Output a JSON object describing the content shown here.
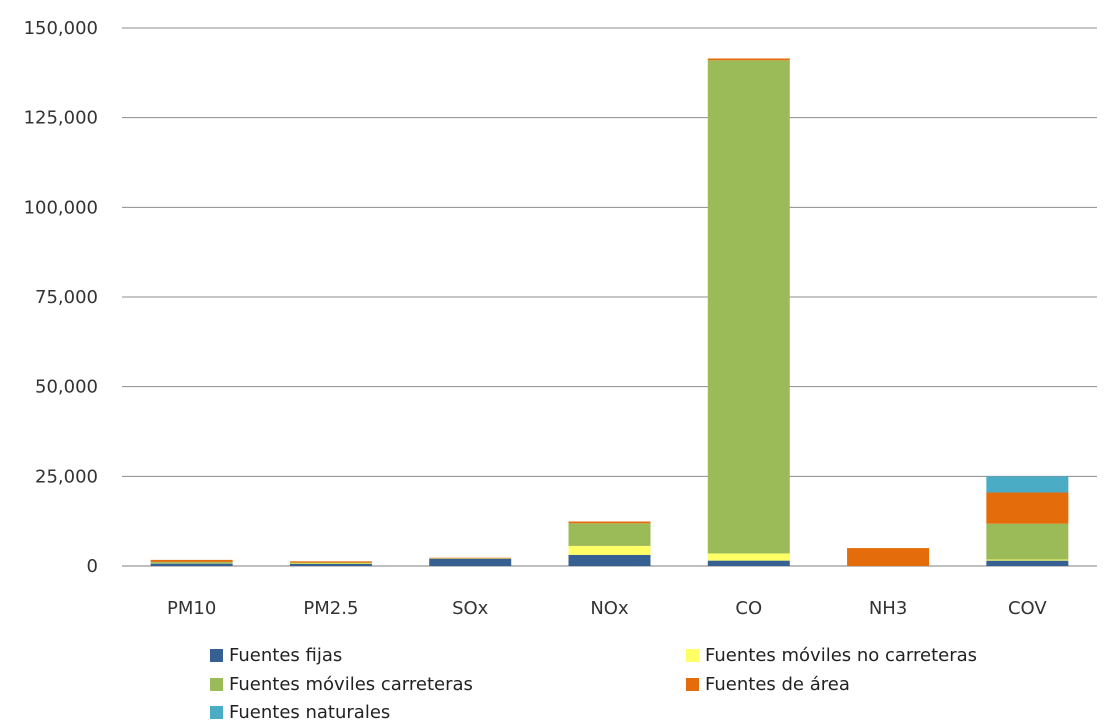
{
  "chart_data": {
    "type": "bar",
    "stacked": true,
    "categories": [
      "PM10",
      "PM2.5",
      "SOx",
      "NOx",
      "CO",
      "NH3",
      "COV"
    ],
    "series": [
      {
        "name": "Fuentes fijas",
        "color": "#376092",
        "values": [
          700,
          600,
          2000,
          3100,
          1500,
          0,
          1500
        ]
      },
      {
        "name": "Fuentes móviles no carreteras",
        "color": "#FFFF66",
        "values": [
          150,
          100,
          0,
          2500,
          2000,
          0,
          300
        ]
      },
      {
        "name": "Fuentes móviles carreteras",
        "color": "#9BBB59",
        "values": [
          300,
          250,
          150,
          6300,
          137500,
          0,
          10000
        ]
      },
      {
        "name": "Fuentes de área",
        "color": "#E46C0A",
        "values": [
          550,
          350,
          150,
          500,
          500,
          5000,
          8700
        ]
      },
      {
        "name": "Fuentes naturales",
        "color": "#4BACC6",
        "values": [
          0,
          0,
          0,
          0,
          0,
          0,
          4500
        ]
      }
    ],
    "y_ticks": [
      "0",
      "25,000",
      "50,000",
      "75,000",
      "100,000",
      "125,000",
      "150,000"
    ],
    "ylim": [
      0,
      150000
    ],
    "grid": true,
    "legend": "bottom",
    "title": "",
    "xlabel": "",
    "ylabel": ""
  }
}
